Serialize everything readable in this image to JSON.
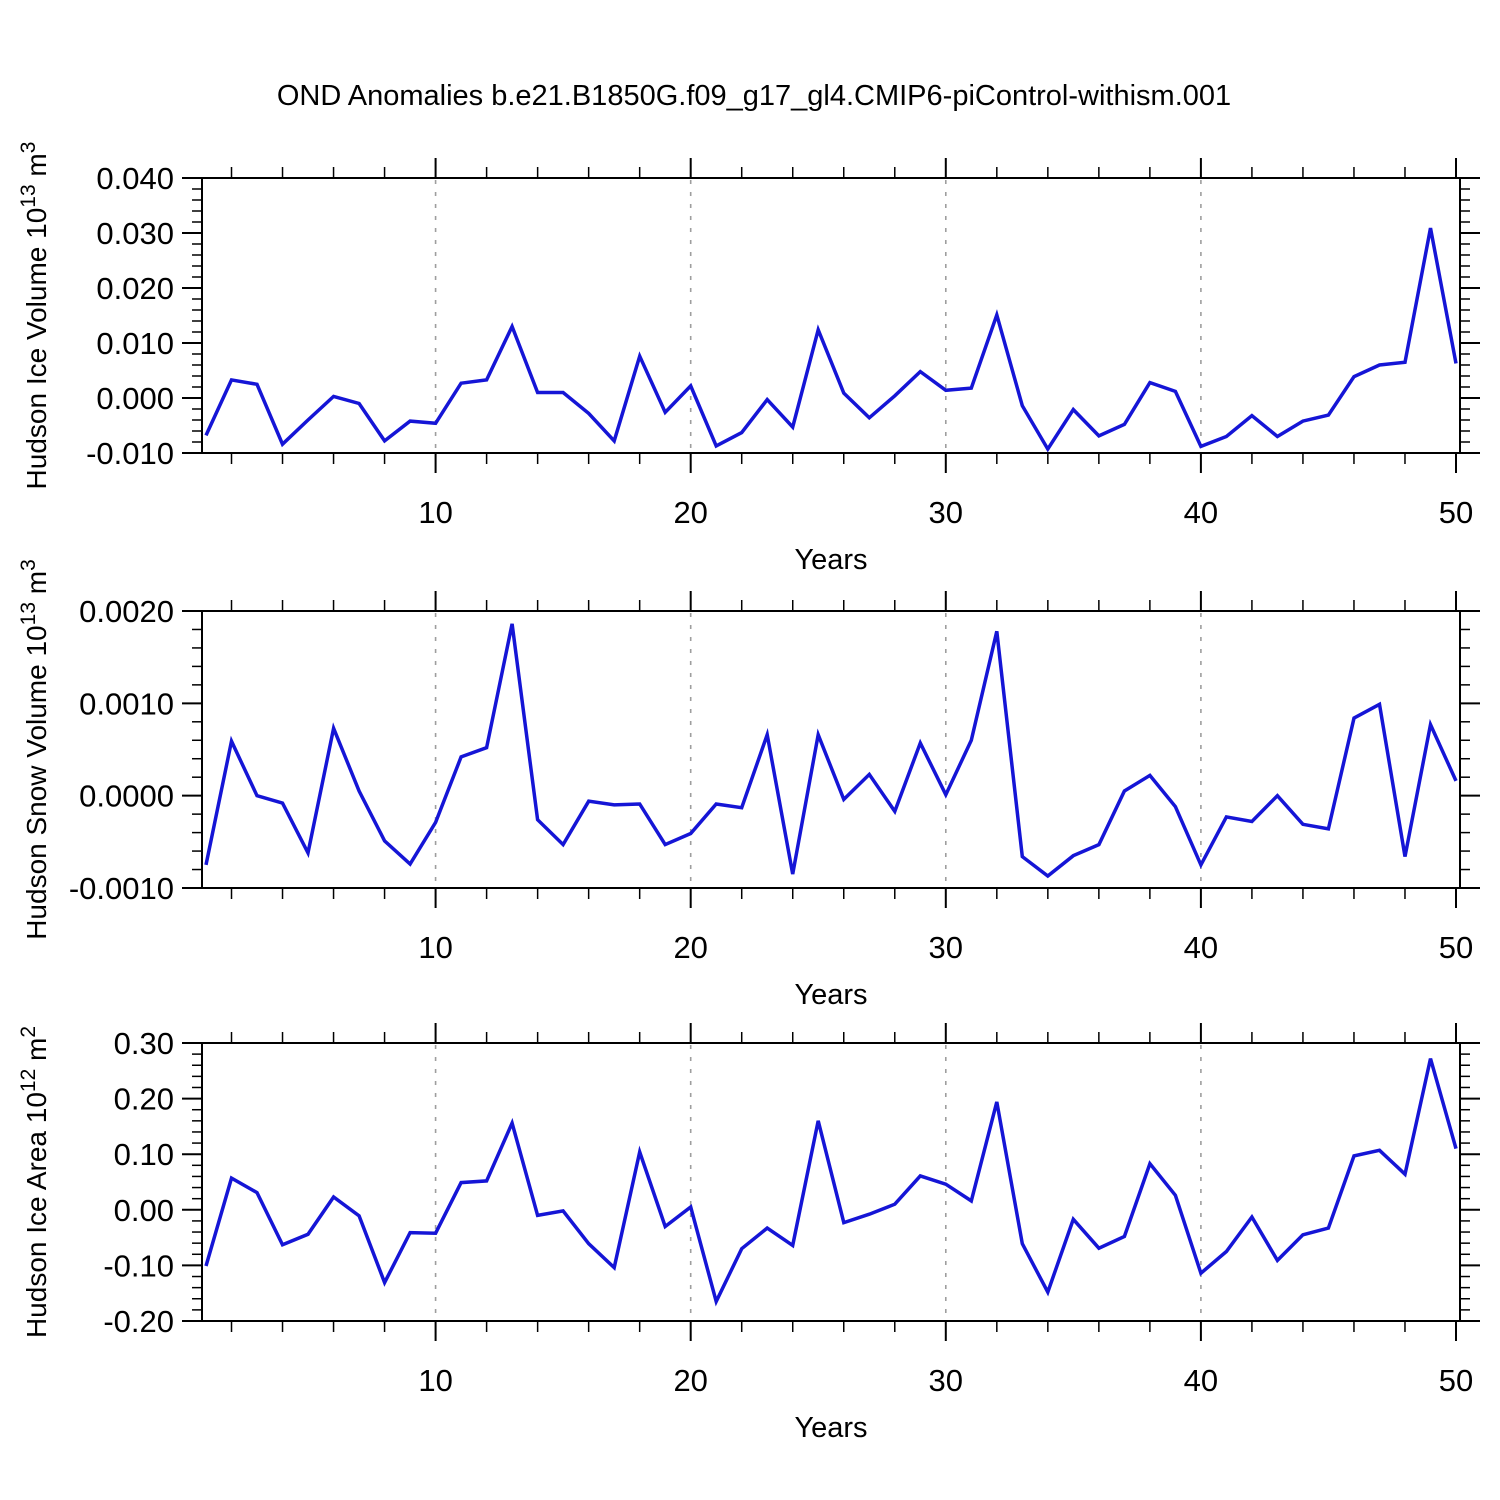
{
  "title": "OND Anomalies b.e21.B1850G.f09_g17_gl4.CMIP6-piControl-withism.001",
  "xlabel": "Years",
  "colors": {
    "line": "#1515D6",
    "grid": "#9E9E9E",
    "axis": "#000000",
    "background": "#FFFFFF"
  },
  "x_axis": {
    "start": 1,
    "end": 50,
    "major_ticks": [
      10,
      20,
      30,
      40,
      50
    ],
    "minor_step": 2,
    "grid_years": [
      10,
      20,
      30,
      40
    ]
  },
  "chart_data": [
    {
      "type": "line",
      "name": "hudson-ice-volume",
      "ylabel": "Hudson Ice Volume 10^13 m^3",
      "ylabel_parts": [
        {
          "text": "Hudson Ice Volume 10"
        },
        {
          "text": "13",
          "sup": true
        },
        {
          "text": " m"
        },
        {
          "text": "3",
          "sup": true
        }
      ],
      "ylim": [
        -0.01,
        0.04
      ],
      "ytick_values": [
        0.04,
        0.03,
        0.02,
        0.01,
        0.0,
        -0.01
      ],
      "ytick_labels": [
        "0.040",
        "0.030",
        "0.020",
        "0.010",
        "0.000",
        "-0.010"
      ],
      "y_minor_step": 0.002,
      "xlabel": "Years",
      "x": [
        1,
        2,
        3,
        4,
        5,
        6,
        7,
        8,
        9,
        10,
        11,
        12,
        13,
        14,
        15,
        16,
        17,
        18,
        19,
        20,
        21,
        22,
        23,
        24,
        25,
        26,
        27,
        28,
        29,
        30,
        31,
        32,
        33,
        34,
        35,
        36,
        37,
        38,
        39,
        40,
        41,
        42,
        43,
        44,
        45,
        46,
        47,
        48,
        49,
        50
      ],
      "values": [
        -0.0068,
        0.0033,
        0.0025,
        -0.0084,
        -0.004,
        0.0003,
        -0.001,
        -0.0078,
        -0.0042,
        -0.0046,
        0.0027,
        0.0033,
        0.013,
        0.001,
        0.001,
        -0.0028,
        -0.0078,
        0.0076,
        -0.0026,
        0.0022,
        -0.0087,
        -0.0063,
        -0.0003,
        -0.0053,
        0.0124,
        0.0009,
        -0.0036,
        0.0004,
        0.0048,
        0.0014,
        0.0018,
        0.0151,
        -0.0014,
        -0.0093,
        -0.0021,
        -0.0069,
        -0.0048,
        0.0028,
        0.0012,
        -0.0088,
        -0.007,
        -0.0032,
        -0.007,
        -0.0042,
        -0.0031,
        0.0039,
        0.006,
        0.0065,
        0.0309,
        0.0063
      ]
    },
    {
      "type": "line",
      "name": "hudson-snow-volume",
      "ylabel": "Hudson Snow Volume 10^13 m^3",
      "ylabel_parts": [
        {
          "text": "Hudson Snow Volume 10"
        },
        {
          "text": "13",
          "sup": true
        },
        {
          "text": " m"
        },
        {
          "text": "3",
          "sup": true
        }
      ],
      "ylim": [
        -0.001,
        0.002
      ],
      "ytick_values": [
        0.002,
        0.001,
        0.0,
        -0.001
      ],
      "ytick_labels": [
        "0.0020",
        "0.0010",
        "0.0000",
        "-0.0010"
      ],
      "y_minor_step": 0.0002,
      "xlabel": "Years",
      "x": [
        1,
        2,
        3,
        4,
        5,
        6,
        7,
        8,
        9,
        10,
        11,
        12,
        13,
        14,
        15,
        16,
        17,
        18,
        19,
        20,
        21,
        22,
        23,
        24,
        25,
        26,
        27,
        28,
        29,
        30,
        31,
        32,
        33,
        34,
        35,
        36,
        37,
        38,
        39,
        40,
        41,
        42,
        43,
        44,
        45,
        46,
        47,
        48,
        49,
        50
      ],
      "values": [
        -0.00075,
        0.00059,
        0.0,
        -8e-05,
        -0.00062,
        0.00073,
        5e-05,
        -0.00049,
        -0.00074,
        -0.00029,
        0.00042,
        0.00052,
        0.00186,
        -0.00026,
        -0.00053,
        -6e-05,
        -0.0001,
        -9e-05,
        -0.00053,
        -0.00041,
        -9e-05,
        -0.00013,
        0.00066,
        -0.00085,
        0.00066,
        -4e-05,
        0.00023,
        -0.00017,
        0.00057,
        1e-05,
        0.0006,
        0.00178,
        -0.00066,
        -0.00087,
        -0.00065,
        -0.00053,
        5e-05,
        0.00022,
        -0.00012,
        -0.00075,
        -0.00023,
        -0.00028,
        0.0,
        -0.00031,
        -0.00036,
        0.00084,
        0.00099,
        -0.00066,
        0.00077,
        0.00016
      ]
    },
    {
      "type": "line",
      "name": "hudson-ice-area",
      "ylabel": "Hudson Ice Area 10^12 m^2",
      "ylabel_parts": [
        {
          "text": "Hudson Ice Area 10"
        },
        {
          "text": "12",
          "sup": true
        },
        {
          "text": " m"
        },
        {
          "text": "2",
          "sup": true
        }
      ],
      "ylim": [
        -0.2,
        0.3
      ],
      "ytick_values": [
        0.3,
        0.2,
        0.1,
        0.0,
        -0.1,
        -0.2
      ],
      "ytick_labels": [
        "0.30",
        "0.20",
        "0.10",
        "0.00",
        "-0.10",
        "-0.20"
      ],
      "y_minor_step": 0.02,
      "xlabel": "Years",
      "x": [
        1,
        2,
        3,
        4,
        5,
        6,
        7,
        8,
        9,
        10,
        11,
        12,
        13,
        14,
        15,
        16,
        17,
        18,
        19,
        20,
        21,
        22,
        23,
        24,
        25,
        26,
        27,
        28,
        29,
        30,
        31,
        32,
        33,
        34,
        35,
        36,
        37,
        38,
        39,
        40,
        41,
        42,
        43,
        44,
        45,
        46,
        47,
        48,
        49,
        50
      ],
      "values": [
        -0.101,
        0.057,
        0.031,
        -0.063,
        -0.044,
        0.023,
        -0.011,
        -0.131,
        -0.041,
        -0.042,
        0.049,
        0.052,
        0.156,
        -0.01,
        -0.002,
        -0.061,
        -0.104,
        0.104,
        -0.03,
        0.005,
        -0.165,
        -0.07,
        -0.033,
        -0.064,
        0.16,
        -0.023,
        -0.008,
        0.01,
        0.061,
        0.046,
        0.016,
        0.194,
        -0.061,
        -0.148,
        -0.017,
        -0.069,
        -0.048,
        0.083,
        0.026,
        -0.114,
        -0.075,
        -0.013,
        -0.091,
        -0.045,
        -0.033,
        0.097,
        0.107,
        0.064,
        0.272,
        0.11
      ]
    }
  ]
}
